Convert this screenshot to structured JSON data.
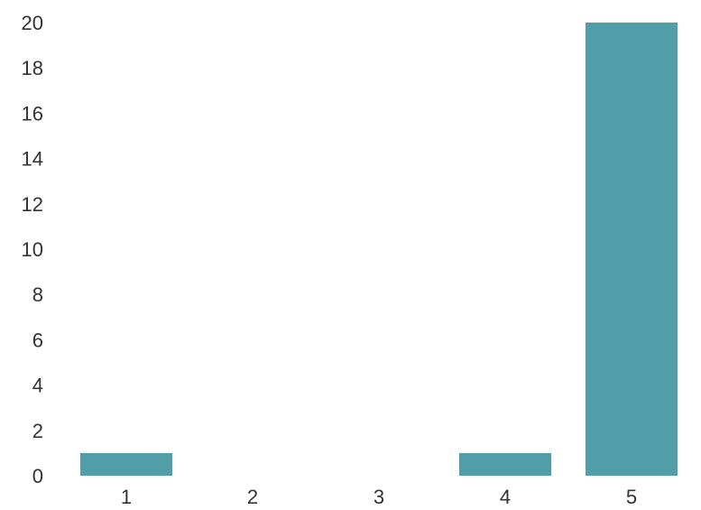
{
  "chart_data": {
    "type": "bar",
    "title": "",
    "xlabel": "",
    "ylabel": "",
    "categories": [
      "1",
      "2",
      "3",
      "4",
      "5"
    ],
    "values": [
      1,
      0,
      0,
      1,
      20
    ],
    "ylim": [
      0,
      20
    ],
    "yticks": [
      "0",
      "2",
      "4",
      "6",
      "8",
      "10",
      "12",
      "14",
      "16",
      "18",
      "20"
    ],
    "grid": false,
    "legend": "none",
    "colors": {
      "bar": "#529ea8",
      "text": "#333333"
    }
  }
}
